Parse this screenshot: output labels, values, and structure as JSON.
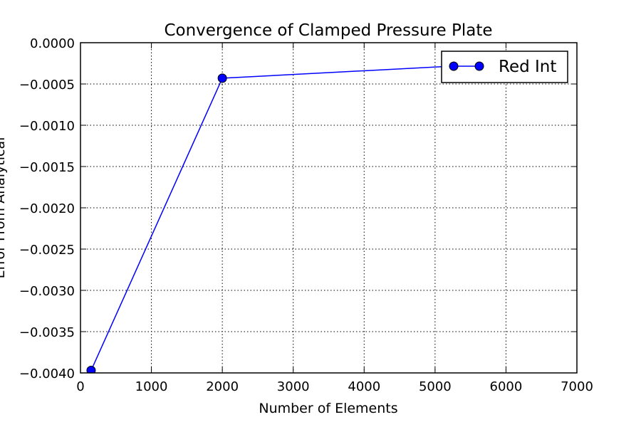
{
  "chart_data": {
    "type": "line",
    "title": "Convergence of Clamped Pressure Plate",
    "xlabel": "Number of Elements",
    "ylabel": "Error From Analytical",
    "xlim": [
      0,
      7000
    ],
    "ylim": [
      -0.004,
      0.0
    ],
    "xticks": [
      0,
      1000,
      2000,
      3000,
      4000,
      5000,
      6000,
      7000
    ],
    "xtick_labels": [
      "0",
      "1000",
      "2000",
      "3000",
      "4000",
      "5000",
      "6000",
      "7000"
    ],
    "yticks": [
      0.0,
      -0.0005,
      -0.001,
      -0.0015,
      -0.002,
      -0.0025,
      -0.003,
      -0.0035,
      -0.004
    ],
    "ytick_labels": [
      "0.0000",
      "−0.0005",
      "−0.0010",
      "−0.0015",
      "−0.0020",
      "−0.0025",
      "−0.0030",
      "−0.0035",
      "−0.0040"
    ],
    "grid": true,
    "legend_position": "top-right",
    "series": [
      {
        "name": "Red Int",
        "color": "#0000ff",
        "marker": "circle",
        "x": [
          150,
          2000,
          6000
        ],
        "y": [
          -0.00397,
          -0.00043,
          -0.00025
        ]
      }
    ]
  }
}
